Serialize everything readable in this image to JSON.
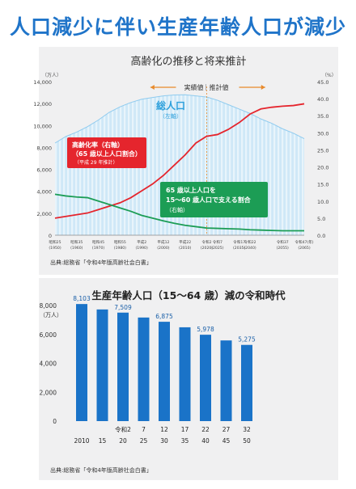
{
  "page": {
    "title": "人口減少に伴い生産年齢人口が減少"
  },
  "chart_data": [
    {
      "type": "area",
      "title": "高齢化の推移と将来推計",
      "left_unit": "（万人）",
      "right_unit": "（%）",
      "left_ticks": [
        "14,000",
        "12,000",
        "10,000",
        "8,000",
        "6,000",
        "4,000",
        "2,000",
        "0"
      ],
      "right_ticks": [
        "45.0",
        "40.0",
        "35.0",
        "30.0",
        "25.0",
        "20.0",
        "15.0",
        "10.0",
        "5.0",
        "0.0"
      ],
      "ylim_left": [
        0,
        14000
      ],
      "ylim_right": [
        0,
        45
      ],
      "xlim": [
        1950,
        2065
      ],
      "actual_estimate_split": 2020,
      "x_ticks": [
        {
          "x": 1950,
          "era": "昭和25",
          "year": "(1950)"
        },
        {
          "x": 1960,
          "era": "昭和35",
          "year": "(1960)"
        },
        {
          "x": 1970,
          "era": "昭和45",
          "year": "(1970)"
        },
        {
          "x": 1980,
          "era": "昭和55",
          "year": "(1980)"
        },
        {
          "x": 1990,
          "era": "平成2",
          "year": "(1990)"
        },
        {
          "x": 2000,
          "era": "平成12",
          "year": "(2000)"
        },
        {
          "x": 2010,
          "era": "平成22",
          "year": "(2010)"
        },
        {
          "x": 2020,
          "era": "令和2",
          "year": "(2020)"
        },
        {
          "x": 2025,
          "era": "令和7",
          "year": "(2025)"
        },
        {
          "x": 2035,
          "era": "令和17",
          "year": "(2035)"
        },
        {
          "x": 2040,
          "era": "令和22",
          "year": "(2040)"
        },
        {
          "x": 2055,
          "era": "令和37",
          "year": "(2055)"
        },
        {
          "x": 2065,
          "era": "令和47(年)",
          "year": "(2065)"
        }
      ],
      "series": [
        {
          "name": "総人口",
          "sub": "（左軸）",
          "axis": "left",
          "color": "#2da0dc",
          "x": [
            1950,
            1955,
            1960,
            1965,
            1970,
            1975,
            1980,
            1985,
            1990,
            1995,
            2000,
            2005,
            2010,
            2015,
            2020,
            2025,
            2030,
            2035,
            2040,
            2045,
            2050,
            2055,
            2060,
            2065
          ],
          "values": [
            8400,
            9000,
            9400,
            9900,
            10500,
            11200,
            11700,
            12100,
            12400,
            12550,
            12700,
            12780,
            12800,
            12700,
            12600,
            12300,
            11900,
            11500,
            11100,
            10600,
            10200,
            9700,
            9300,
            8800
          ]
        },
        {
          "name": "高齢化率（右軸）",
          "axis": "right",
          "color": "#e5252d",
          "x": [
            1950,
            1955,
            1960,
            1965,
            1970,
            1975,
            1980,
            1985,
            1990,
            1995,
            2000,
            2005,
            2010,
            2015,
            2020,
            2025,
            2030,
            2035,
            2040,
            2045,
            2050,
            2055,
            2060,
            2065
          ],
          "values": [
            5.0,
            5.5,
            6.0,
            6.5,
            7.5,
            8.5,
            9.5,
            11.0,
            13.0,
            15.0,
            17.5,
            20.5,
            23.5,
            27.0,
            29.0,
            29.5,
            31.0,
            33.0,
            35.5,
            37.0,
            37.5,
            37.8,
            38.0,
            38.5
          ]
        },
        {
          "name": "65歳以上人口を15〜60歳人口で支える割合（右軸）",
          "axis": "right",
          "color": "#1c9d55",
          "x": [
            1950,
            1955,
            1960,
            1965,
            1970,
            1975,
            1980,
            1985,
            1990,
            1995,
            2000,
            2005,
            2010,
            2015,
            2020,
            2025,
            2030,
            2035,
            2040,
            2045,
            2050,
            2055,
            2060,
            2065
          ],
          "values": [
            12.0,
            11.5,
            11.2,
            11.0,
            10.0,
            9.0,
            8.0,
            7.0,
            5.8,
            5.0,
            4.2,
            3.5,
            2.9,
            2.5,
            2.1,
            2.0,
            1.9,
            1.8,
            1.6,
            1.5,
            1.4,
            1.3,
            1.3,
            1.3
          ]
        }
      ],
      "annotations": {
        "period_actual": "実績値",
        "period_estimate": "推計値",
        "total_pop_label": "総人口",
        "total_pop_sub": "（左軸）",
        "red_label_1": "高齢化率（右軸）",
        "red_label_2": "（65 歳以上人口割合）",
        "red_label_3": "（平成 29 年推計）",
        "green_label_1": "65 歳以上人口を",
        "green_label_2": "15～60 歳人口で支える割合",
        "green_label_3": "（右軸）"
      },
      "source": "出典:総務省「令和4年版高齢社会白書」"
    },
    {
      "type": "bar",
      "title": "生産年齢人口（15～64 歳）減の令和時代",
      "unit": "（万人）",
      "ylim": [
        0,
        8000
      ],
      "y_ticks": [
        "8,000",
        "6,000",
        "4,000",
        "2,000",
        "0"
      ],
      "color": "#1a73c8",
      "categories": [
        "2010",
        "15",
        "20",
        "25",
        "30",
        "35",
        "40",
        "45",
        "50"
      ],
      "era_labels": [
        "",
        "",
        "令和2",
        "7",
        "12",
        "17",
        "22",
        "27",
        "32"
      ],
      "values": [
        8103,
        7728,
        7509,
        7170,
        6875,
        6494,
        5978,
        5584,
        5275
      ],
      "data_labels": [
        "8,103",
        "",
        "7,509",
        "",
        "6,875",
        "",
        "5,978",
        "",
        "5,275"
      ],
      "source": "出典:総務省「令和4年版高齢社会白書」"
    }
  ]
}
